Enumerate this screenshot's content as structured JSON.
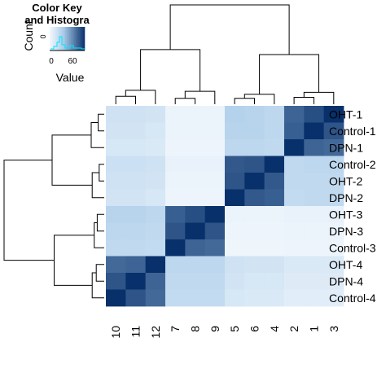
{
  "chart_data": {
    "type": "heatmap",
    "title": "",
    "color_key": {
      "title_lines": [
        "Color Key",
        "and Histogra"
      ],
      "ylabel": "Count",
      "ytick": "0",
      "xticks": [
        "0",
        "60"
      ],
      "xlabel": "Value",
      "range": [
        0,
        100
      ],
      "colors": {
        "low": "#f4f9fe",
        "mid": "#a9cbe8",
        "high": "#08306b"
      }
    },
    "rows": [
      "OHT-1",
      "Control-1",
      "DPN-1",
      "Control-2",
      "OHT-2",
      "DPN-2",
      "OHT-3",
      "DPN-3",
      "Control-3",
      "OHT-4",
      "DPN-4",
      "Control-4"
    ],
    "columns": [
      "10",
      "11",
      "12",
      "7",
      "8",
      "9",
      "5",
      "6",
      "4",
      "2",
      "1",
      "3"
    ],
    "values": [
      [
        20,
        20,
        18,
        5,
        5,
        5,
        34,
        32,
        30,
        80,
        88,
        100
      ],
      [
        18,
        18,
        16,
        5,
        5,
        5,
        32,
        32,
        30,
        82,
        100,
        86
      ],
      [
        16,
        16,
        14,
        4,
        4,
        4,
        30,
        30,
        28,
        100,
        80,
        78
      ],
      [
        22,
        22,
        20,
        6,
        6,
        6,
        84,
        86,
        100,
        28,
        30,
        30
      ],
      [
        20,
        20,
        18,
        5,
        5,
        5,
        86,
        100,
        84,
        28,
        28,
        28
      ],
      [
        18,
        18,
        16,
        4,
        4,
        4,
        100,
        84,
        82,
        26,
        28,
        28
      ],
      [
        32,
        32,
        30,
        82,
        88,
        100,
        5,
        5,
        5,
        6,
        6,
        6
      ],
      [
        30,
        30,
        28,
        86,
        100,
        86,
        4,
        4,
        4,
        5,
        5,
        5
      ],
      [
        28,
        28,
        26,
        100,
        80,
        78,
        3,
        3,
        3,
        4,
        4,
        4
      ],
      [
        78,
        80,
        100,
        30,
        30,
        30,
        20,
        18,
        18,
        14,
        14,
        14
      ],
      [
        86,
        100,
        80,
        28,
        28,
        28,
        18,
        16,
        16,
        12,
        12,
        12
      ],
      [
        100,
        86,
        78,
        26,
        26,
        26,
        16,
        14,
        14,
        10,
        10,
        10
      ]
    ],
    "column_dendrogram": [
      [
        0,
        1,
        0.08
      ],
      [
        2,
        0.08,
        0.14
      ],
      [
        3,
        4,
        0.06
      ],
      [
        5,
        0.06,
        0.13
      ],
      [
        6,
        7,
        0.06
      ],
      [
        8,
        0.06,
        0.1
      ],
      [
        9,
        10,
        0.07
      ],
      [
        11,
        0.07,
        0.12
      ],
      [
        0.14,
        0.13,
        0.55
      ],
      [
        0.1,
        0.12,
        0.5
      ],
      [
        0.55,
        0.5,
        1.0
      ]
    ],
    "row_dendrogram": [
      [
        0,
        1,
        0.06
      ],
      [
        0.06,
        2,
        0.13
      ],
      [
        3,
        4,
        0.05
      ],
      [
        0.05,
        5,
        0.12
      ],
      [
        6,
        7,
        0.07
      ],
      [
        0.07,
        8,
        0.1
      ],
      [
        9,
        10,
        0.08
      ],
      [
        0.08,
        11,
        0.12
      ],
      [
        0.13,
        0.12,
        0.52
      ],
      [
        0.1,
        0.12,
        0.5
      ],
      [
        0.52,
        0.5,
        1.0
      ]
    ]
  }
}
